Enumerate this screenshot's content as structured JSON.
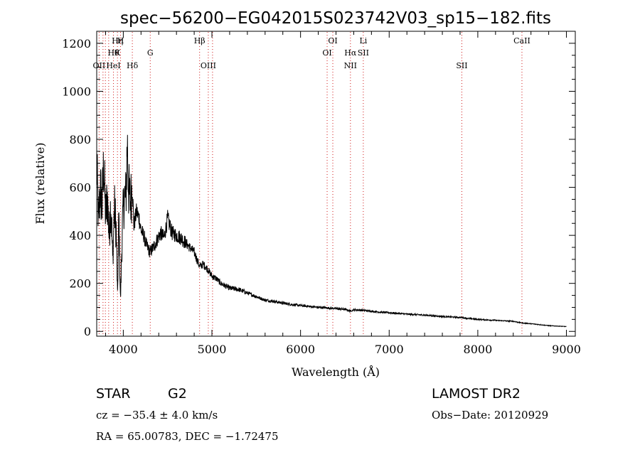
{
  "chart_data": {
    "type": "line",
    "title": "spec−56200−EG042015S023742V03_sp15−182.fits",
    "xlabel": "Wavelength (Å)",
    "ylabel": "Flux (relative)",
    "xlim": [
      3700,
      9100
    ],
    "ylim": [
      -20,
      1250
    ],
    "xticks": [
      4000,
      5000,
      6000,
      7000,
      8000,
      9000
    ],
    "yticks": [
      0,
      200,
      400,
      600,
      800,
      1000,
      1200
    ],
    "grid": false,
    "series": [
      {
        "x": [
          3700,
          3720,
          3740,
          3760,
          3780,
          3800,
          3820,
          3840,
          3860,
          3880,
          3900,
          3920,
          3935,
          3950,
          3968,
          3990,
          4010,
          4030,
          4045,
          4060,
          4080,
          4102,
          4120,
          4150,
          4180,
          4200,
          4230,
          4260,
          4300,
          4340,
          4380,
          4420,
          4460,
          4500,
          4550,
          4600,
          4650,
          4700,
          4750,
          4800,
          4861,
          4900,
          4950,
          5000,
          5050,
          5100,
          5150,
          5200,
          5300,
          5400,
          5500,
          5600,
          5700,
          5800,
          5900,
          6000,
          6100,
          6200,
          6300,
          6400,
          6500,
          6563,
          6600,
          6700,
          6800,
          6900,
          7000,
          7200,
          7400,
          7600,
          7800,
          8000,
          8200,
          8400,
          8500,
          8600,
          8800,
          9000
        ],
        "values": [
          700,
          450,
          600,
          520,
          700,
          480,
          560,
          400,
          540,
          300,
          520,
          420,
          140,
          480,
          130,
          440,
          560,
          560,
          790,
          590,
          540,
          600,
          440,
          500,
          470,
          420,
          400,
          360,
          330,
          350,
          380,
          410,
          390,
          470,
          410,
          400,
          390,
          370,
          350,
          330,
          270,
          280,
          260,
          230,
          220,
          200,
          190,
          180,
          175,
          160,
          145,
          130,
          125,
          118,
          112,
          108,
          104,
          100,
          98,
          95,
          92,
          85,
          90,
          88,
          84,
          80,
          78,
          72,
          68,
          62,
          58,
          50,
          46,
          42,
          35,
          32,
          24,
          20
        ]
      }
    ],
    "lines": [
      {
        "wl": 3727,
        "labels": [
          {
            "text": "OII",
            "row": 3
          }
        ]
      },
      {
        "wl": 3771,
        "labels": []
      },
      {
        "wl": 3798,
        "labels": []
      },
      {
        "wl": 3835,
        "labels": []
      },
      {
        "wl": 3889,
        "labels": [
          {
            "text": "Hθ",
            "row": 2
          },
          {
            "text": "HeI",
            "row": 3
          }
        ]
      },
      {
        "wl": 3934,
        "labels": [
          {
            "text": "Hη",
            "row": 1
          },
          {
            "text": "K",
            "row": 2
          }
        ]
      },
      {
        "wl": 3969,
        "labels": [
          {
            "text": "H",
            "row": 1
          }
        ]
      },
      {
        "wl": 4102,
        "labels": [
          {
            "text": "Hδ",
            "row": 3
          }
        ]
      },
      {
        "wl": 4304,
        "labels": [
          {
            "text": "G",
            "row": 2
          }
        ]
      },
      {
        "wl": 4861,
        "labels": [
          {
            "text": "Hβ",
            "row": 1
          }
        ]
      },
      {
        "wl": 4959,
        "labels": [
          {
            "text": "OIII",
            "row": 3
          }
        ]
      },
      {
        "wl": 5007,
        "labels": []
      },
      {
        "wl": 6300,
        "labels": [
          {
            "text": "OI",
            "row": 2
          }
        ]
      },
      {
        "wl": 6364,
        "labels": [
          {
            "text": "OI",
            "row": 1
          }
        ]
      },
      {
        "wl": 6563,
        "labels": [
          {
            "text": "Hα",
            "row": 2
          },
          {
            "text": "NII",
            "row": 3
          }
        ]
      },
      {
        "wl": 6708,
        "labels": [
          {
            "text": "Li",
            "row": 1
          },
          {
            "text": "SII",
            "row": 2
          }
        ]
      },
      {
        "wl": 7820,
        "labels": [
          {
            "text": "SII",
            "row": 3
          }
        ]
      },
      {
        "wl": 8498,
        "labels": [
          {
            "text": "CaII",
            "row": 1
          }
        ]
      }
    ]
  },
  "info": {
    "class": "STAR",
    "subclass": "G2",
    "survey": "LAMOST DR2",
    "cz": "cz = −35.4 ± 4.0 km/s",
    "obs_date": "Obs−Date: 20120929",
    "coords": "RA =  65.00783, DEC =  −1.72475"
  }
}
